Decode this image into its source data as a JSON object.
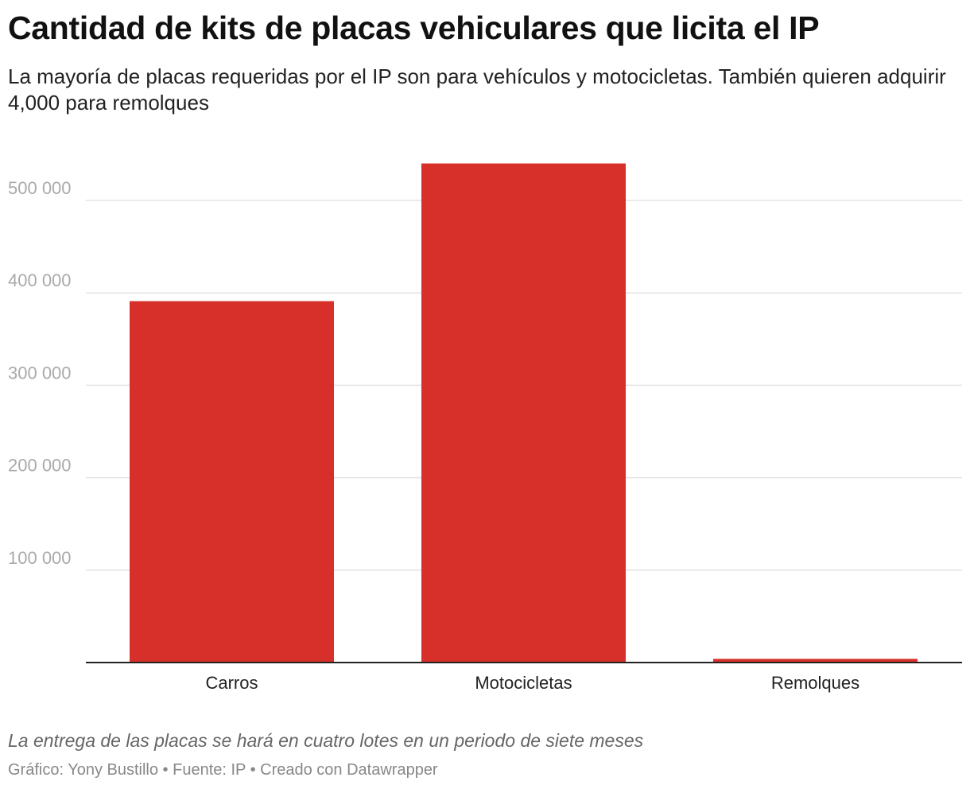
{
  "title": "Cantidad de kits de placas vehiculares que licita el IP",
  "subtitle": "La mayoría de placas requeridas por el IP son para vehículos y motocicletas. También quieren adquirir 4,000 para remolques",
  "note": "La entrega de las placas se hará en cuatro lotes en un periodo de siete meses",
  "credits": "Gráfico: Yony Bustillo • Fuente: IP • Creado con Datawrapper",
  "colors": {
    "bar": "#d7302b",
    "grid": "#e3e3e3",
    "axis": "#222222",
    "tick": "#aaaaaa"
  },
  "chart_data": {
    "type": "bar",
    "categories": [
      "Carros",
      "Motocicletas",
      "Remolques"
    ],
    "values": [
      391000,
      540000,
      4000
    ],
    "ylim": [
      0,
      540000
    ],
    "yticks": [
      100000,
      200000,
      300000,
      400000,
      500000
    ],
    "ytick_labels": [
      "100 000",
      "200 000",
      "300 000",
      "400 000",
      "500 000"
    ],
    "grid": true,
    "legend": "none"
  }
}
